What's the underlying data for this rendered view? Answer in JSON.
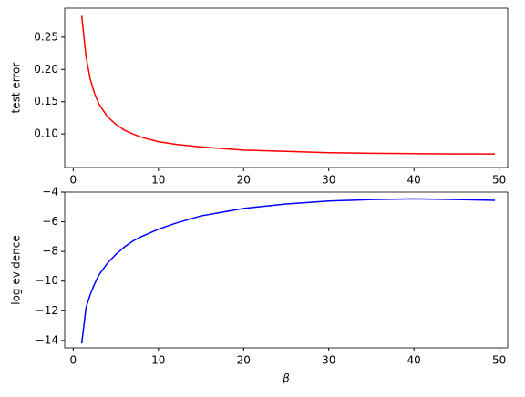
{
  "chart_data": [
    {
      "type": "line",
      "ylabel": "test error",
      "x": [
        1,
        1.5,
        2,
        2.5,
        3,
        4,
        5,
        6,
        7,
        8,
        10,
        12,
        15,
        20,
        25,
        30,
        35,
        40,
        45,
        49.5
      ],
      "series": [
        {
          "color": "#ff0000",
          "values": [
            0.283,
            0.22,
            0.185,
            0.163,
            0.147,
            0.127,
            0.115,
            0.106,
            0.1,
            0.095,
            0.088,
            0.084,
            0.08,
            0.075,
            0.073,
            0.071,
            0.07,
            0.0695,
            0.069,
            0.069
          ]
        }
      ],
      "xlim": [
        -1,
        51
      ],
      "ylim": [
        0.048,
        0.295
      ],
      "xticks": [
        0,
        10,
        20,
        30,
        40,
        50
      ],
      "yticks": [
        {
          "value": 0.1,
          "label": "0.10"
        },
        {
          "value": 0.15,
          "label": "0.15"
        },
        {
          "value": 0.2,
          "label": "0.20"
        },
        {
          "value": 0.25,
          "label": "0.25"
        }
      ]
    },
    {
      "type": "line",
      "ylabel": "log evidence",
      "xlabel": "β",
      "x": [
        1,
        1.5,
        2,
        2.5,
        3,
        4,
        5,
        6,
        7,
        8,
        10,
        12,
        15,
        20,
        25,
        30,
        35,
        40,
        45,
        49.5
      ],
      "series": [
        {
          "color": "#0000ff",
          "values": [
            -14.2,
            -11.8,
            -10.9,
            -10.2,
            -9.6,
            -8.8,
            -8.2,
            -7.7,
            -7.3,
            -7.0,
            -6.5,
            -6.1,
            -5.6,
            -5.1,
            -4.8,
            -4.6,
            -4.5,
            -4.45,
            -4.5,
            -4.55
          ]
        }
      ],
      "xlim": [
        -1,
        51
      ],
      "ylim": [
        -14.5,
        -4
      ],
      "xticks": [
        0,
        10,
        20,
        30,
        40,
        50
      ],
      "yticks": [
        {
          "value": -14,
          "label": "−14"
        },
        {
          "value": -12,
          "label": "−12"
        },
        {
          "value": -10,
          "label": "−10"
        },
        {
          "value": -8,
          "label": "−8"
        },
        {
          "value": -6,
          "label": "−6"
        },
        {
          "value": -4,
          "label": "−4"
        }
      ]
    }
  ]
}
